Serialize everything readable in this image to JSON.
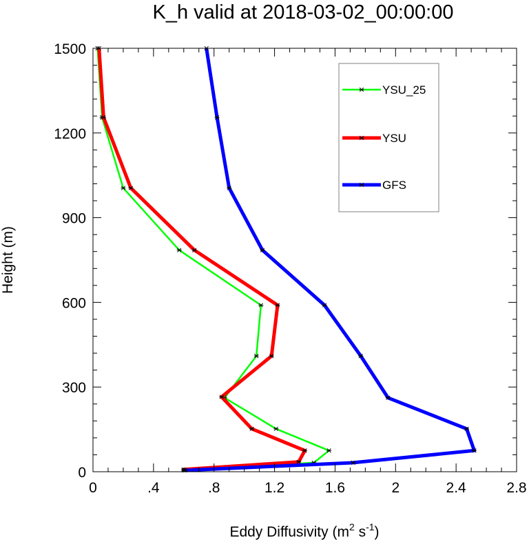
{
  "chart_data": {
    "type": "line",
    "title": "K_h valid at 2018-03-02_00:00:00",
    "xlabel": "Eddy Diffusivity",
    "xlabel_units": {
      "open": "(m",
      "sup1": "2",
      "mid": " s",
      "sup2": "-1",
      "close": ")"
    },
    "ylabel": "Height (m)",
    "xlim": [
      0,
      2.8
    ],
    "ylim": [
      0,
      1500
    ],
    "xticks": [
      0,
      0.4,
      0.8,
      1.2,
      1.6,
      2.0,
      2.4,
      2.8
    ],
    "xtick_labels": [
      "0",
      ".4",
      ".8",
      "1.2",
      "1.6",
      "2",
      "2.4",
      "2.8"
    ],
    "yticks": [
      0,
      300,
      600,
      900,
      1200,
      1500
    ],
    "ytick_labels": [
      "0",
      "300",
      "600",
      "900",
      "1200",
      "1500"
    ],
    "grid": false,
    "legend_position": "top-right",
    "series": [
      {
        "name": "YSU_25",
        "color": "#00ff00",
        "marker": "asterisk",
        "points": [
          [
            0.6,
            5
          ],
          [
            1.46,
            32
          ],
          [
            1.56,
            75
          ],
          [
            1.21,
            152
          ],
          [
            0.87,
            262
          ],
          [
            1.08,
            410
          ],
          [
            1.11,
            590
          ],
          [
            0.57,
            785
          ],
          [
            0.2,
            1005
          ],
          [
            0.06,
            1255
          ],
          [
            0.03,
            1500
          ]
        ]
      },
      {
        "name": "YSU",
        "color": "#ff0000",
        "marker": "asterisk",
        "points": [
          [
            0.6,
            8
          ],
          [
            1.36,
            35
          ],
          [
            1.4,
            75
          ],
          [
            1.05,
            152
          ],
          [
            0.85,
            265
          ],
          [
            1.18,
            410
          ],
          [
            1.22,
            590
          ],
          [
            0.67,
            785
          ],
          [
            0.25,
            1005
          ],
          [
            0.07,
            1255
          ],
          [
            0.04,
            1500
          ]
        ]
      },
      {
        "name": "GFS",
        "color": "#0000ff",
        "marker": "asterisk",
        "points": [
          [
            0.61,
            5
          ],
          [
            1.72,
            32
          ],
          [
            2.52,
            75
          ],
          [
            2.47,
            152
          ],
          [
            1.95,
            262
          ],
          [
            1.77,
            410
          ],
          [
            1.53,
            590
          ],
          [
            1.12,
            785
          ],
          [
            0.9,
            1005
          ],
          [
            0.82,
            1255
          ],
          [
            0.75,
            1500
          ]
        ]
      }
    ]
  }
}
